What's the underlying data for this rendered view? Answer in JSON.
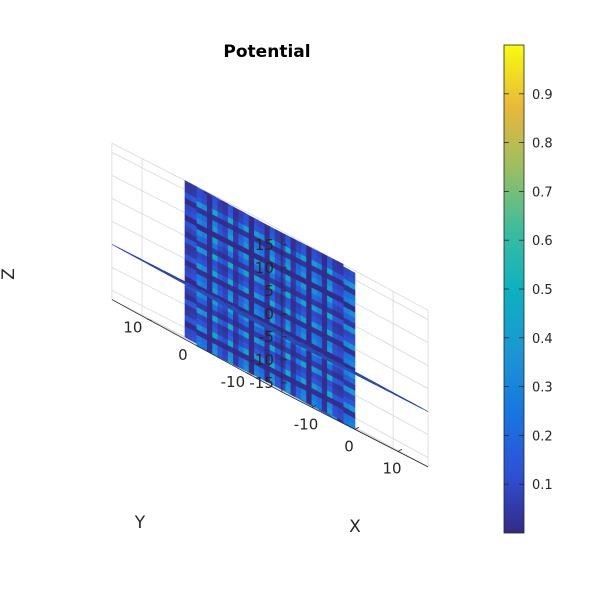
{
  "chart_data": {
    "type": "heatmap",
    "subtype": "3d-slice",
    "title": "Potential",
    "xlabel": "X",
    "ylabel": "Y",
    "zlabel": "Z",
    "x_ticks": [
      "-10",
      "0",
      "10"
    ],
    "y_ticks": [
      "10",
      "0",
      "-10"
    ],
    "z_ticks": [
      "15",
      "10",
      "5",
      "0",
      "-5",
      "-10",
      "-15"
    ],
    "x_range": [
      -17,
      17
    ],
    "y_range": [
      -17,
      17
    ],
    "z_range": [
      -17,
      17
    ],
    "slices": [
      {
        "plane": "x",
        "at": 0
      },
      {
        "plane": "y",
        "at": 0
      },
      {
        "plane": "z",
        "at": -5
      }
    ],
    "pattern": {
      "periods_per_unit": 0.3,
      "min": 0.0,
      "max": 1.0
    },
    "colorbar": {
      "ticks": [
        "0.1",
        "0.2",
        "0.3",
        "0.4",
        "0.5",
        "0.6",
        "0.7",
        "0.8",
        "0.9"
      ],
      "range": [
        0.0,
        1.0
      ],
      "colormap": "parula"
    },
    "grid": true
  }
}
